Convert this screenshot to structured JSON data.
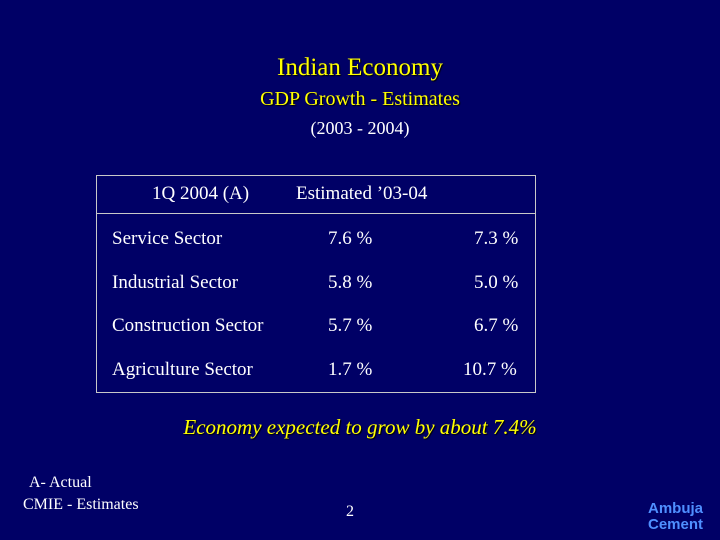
{
  "slide": {
    "title": "Indian Economy",
    "subtitle": "GDP Growth - Estimates",
    "period": "(2003 - 2004)",
    "table": {
      "headers": [
        "1Q 2004 (A)",
        "Estimated ’03-04"
      ],
      "rows": [
        {
          "sector": "Service Sector",
          "q1": "7.6 %",
          "est": "7.3 %"
        },
        {
          "sector": "Industrial Sector",
          "q1": "5.8 %",
          "est": "5.0 %"
        },
        {
          "sector": "Construction Sector",
          "q1": "5.7 %",
          "est": "6.7 %"
        },
        {
          "sector": "Agriculture Sector",
          "q1": "1.7 %",
          "est": "10.7 %"
        }
      ]
    },
    "footer": "Economy expected to grow by about 7.4%",
    "notes": [
      "A- Actual",
      "CMIE - Estimates"
    ],
    "page_number": "2",
    "logo": [
      "Ambuja",
      "Cement"
    ]
  },
  "colors": {
    "background": "#000066",
    "title": "#ffff00",
    "text": "#ffffff",
    "logo": "#4f8fff"
  }
}
